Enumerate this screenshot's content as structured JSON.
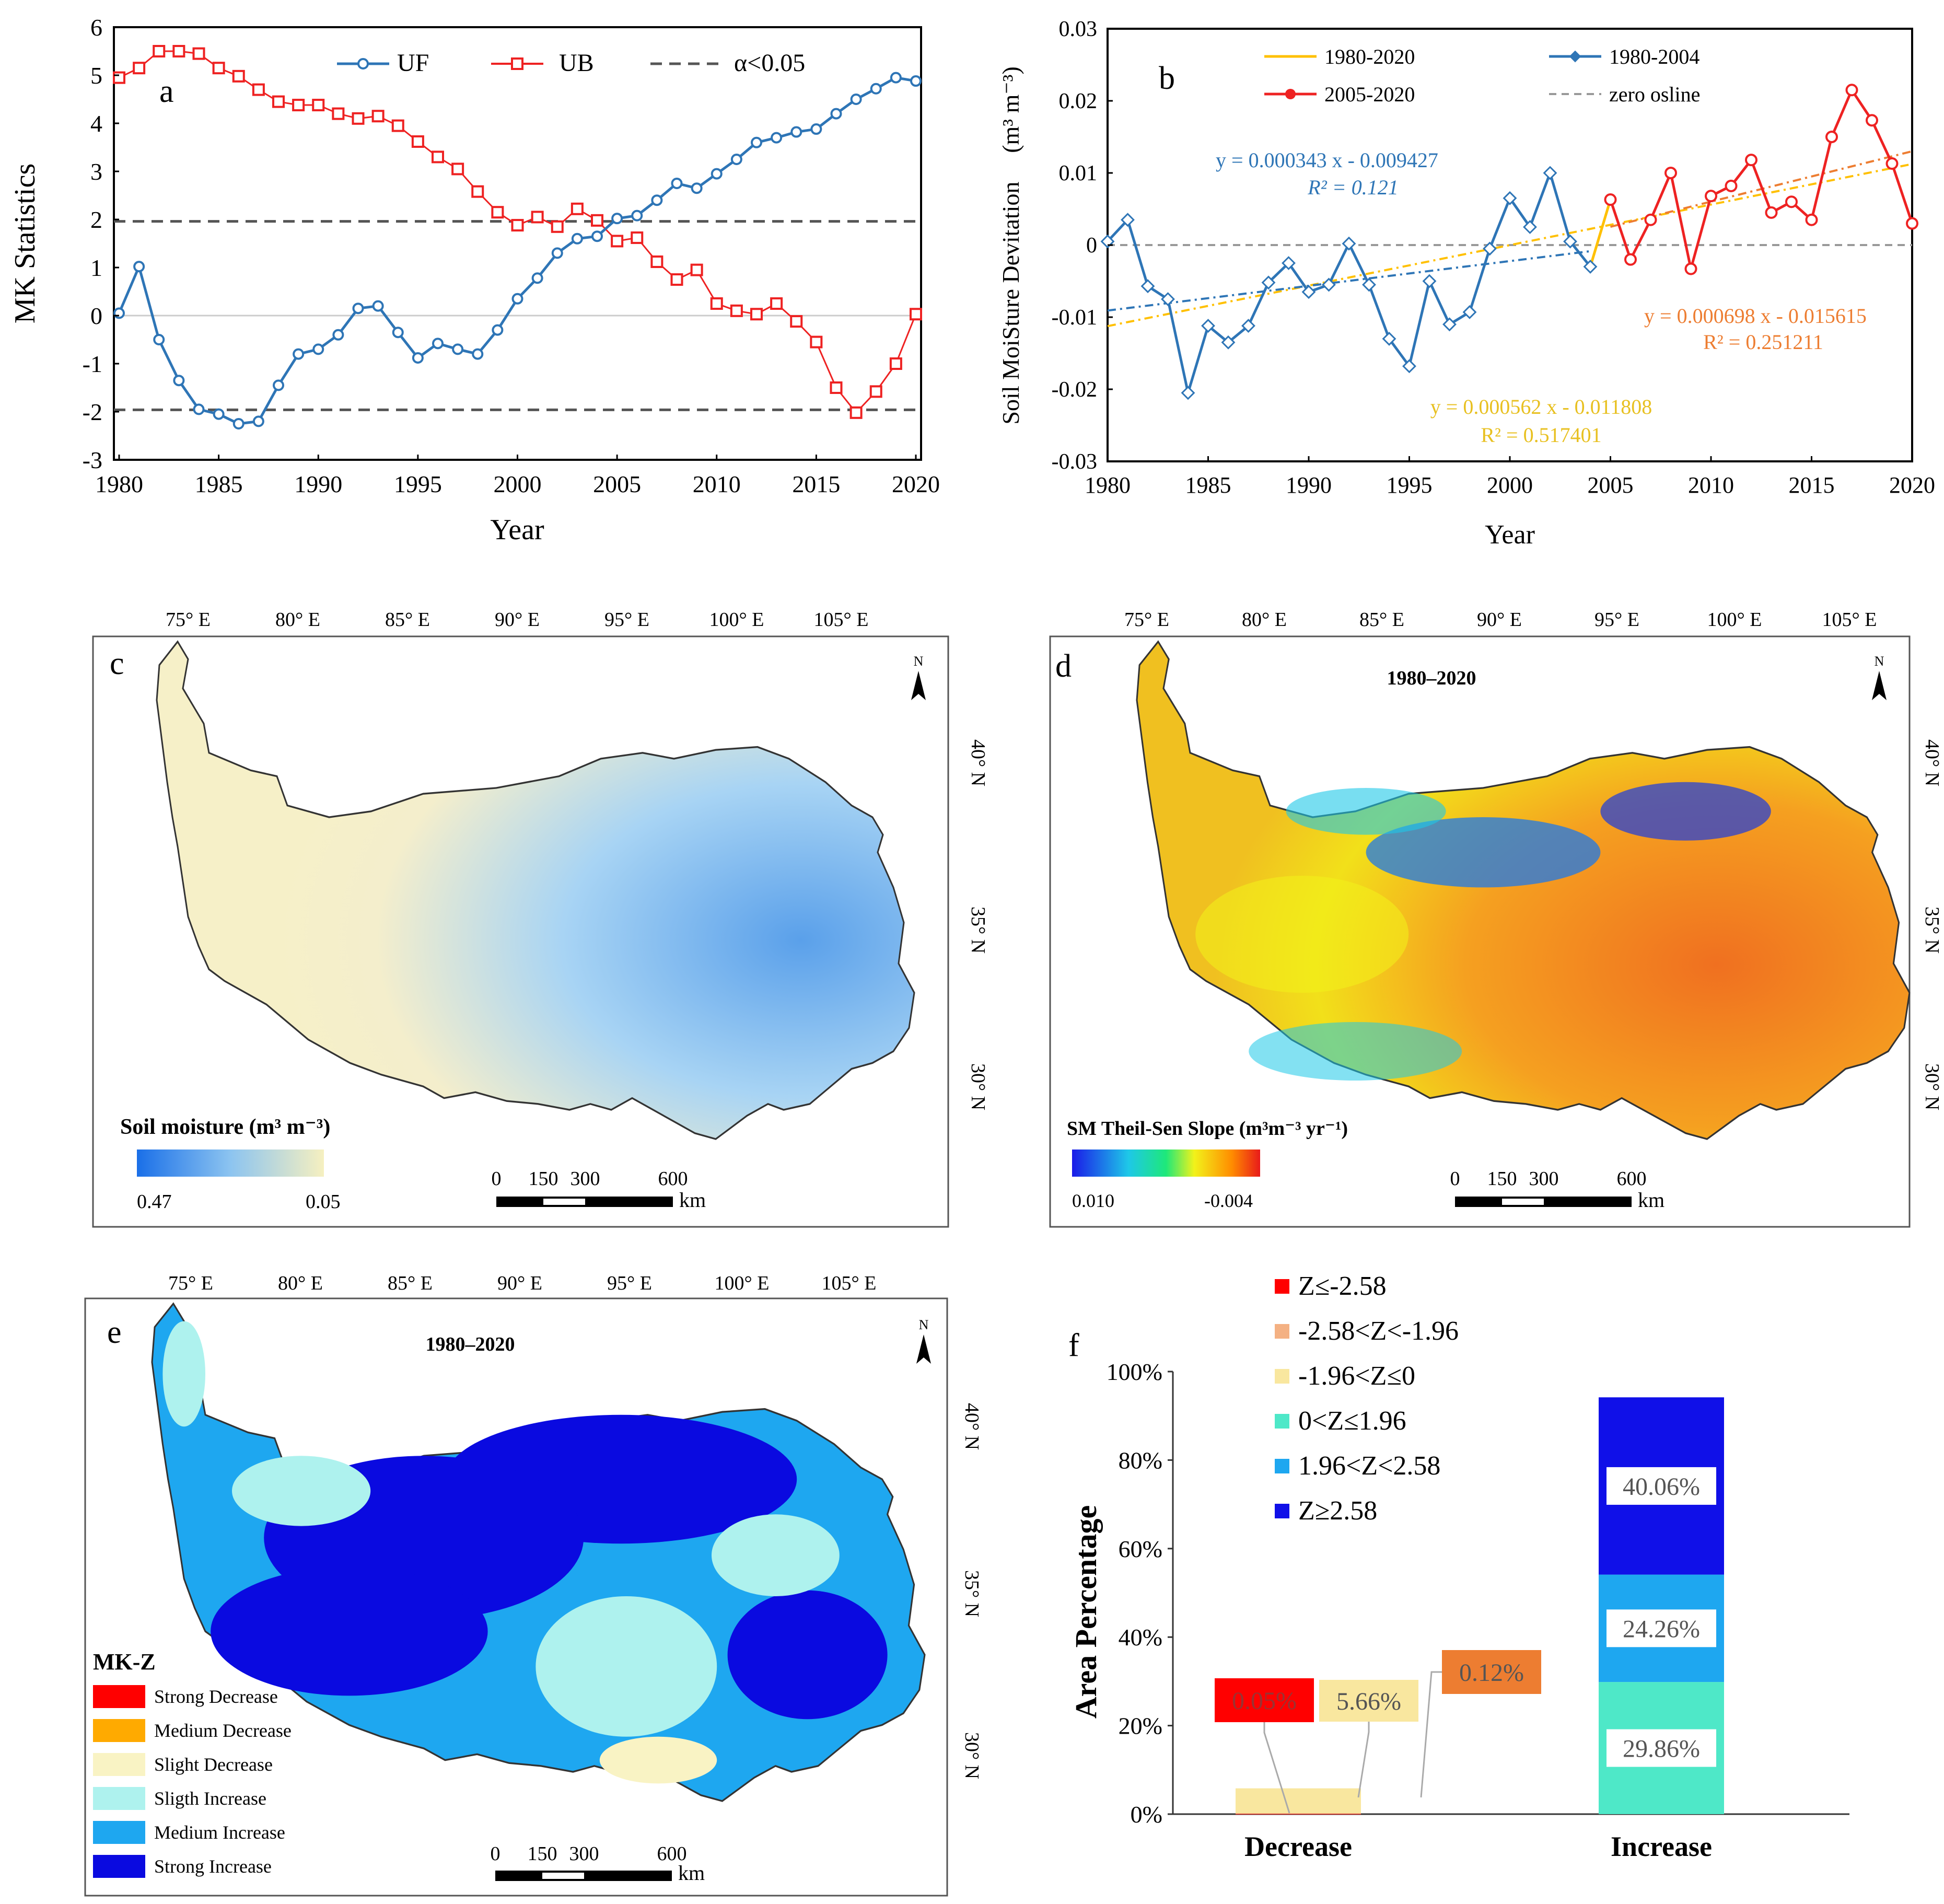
{
  "chart_data": [
    {
      "panel": "a",
      "type": "line",
      "ylabel": "MK Statistics",
      "xlabel": "Year",
      "xlim": [
        1980,
        2020
      ],
      "ylim": [
        -3,
        6
      ],
      "xticks": [
        1980,
        1985,
        1990,
        1995,
        2000,
        2005,
        2010,
        2015,
        2020
      ],
      "yticks": [
        -3,
        -2,
        -1,
        0,
        1,
        2,
        3,
        4,
        5,
        6
      ],
      "legend": [
        "UF",
        "UB",
        "α<0.05"
      ],
      "colors": {
        "UF": "#2e75b6",
        "UB": "#ee2222",
        "ref": "#555555"
      },
      "x": [
        1980,
        1981,
        1982,
        1983,
        1984,
        1985,
        1986,
        1987,
        1988,
        1989,
        1990,
        1991,
        1992,
        1993,
        1994,
        1995,
        1996,
        1997,
        1998,
        1999,
        2000,
        2001,
        2002,
        2003,
        2004,
        2005,
        2006,
        2007,
        2008,
        2009,
        2010,
        2011,
        2012,
        2013,
        2014,
        2015,
        2016,
        2017,
        2018,
        2019,
        2020
      ],
      "series": [
        {
          "name": "UF",
          "values": [
            0.05,
            1.02,
            -0.5,
            -1.35,
            -1.95,
            -2.05,
            -2.25,
            -2.2,
            -1.45,
            -0.8,
            -0.7,
            -0.4,
            0.15,
            0.2,
            -0.35,
            -0.88,
            -0.58,
            -0.7,
            -0.8,
            -0.3,
            0.35,
            0.78,
            1.3,
            1.6,
            1.65,
            2.02,
            2.08,
            2.4,
            2.75,
            2.65,
            2.95,
            3.25,
            3.6,
            3.7,
            3.82,
            3.88,
            4.2,
            4.5,
            4.72,
            4.95,
            4.88
          ]
        },
        {
          "name": "UB",
          "values": [
            4.95,
            5.15,
            5.5,
            5.5,
            5.45,
            5.15,
            4.98,
            4.7,
            4.45,
            4.38,
            4.38,
            4.2,
            4.1,
            4.15,
            3.95,
            3.62,
            3.3,
            3.05,
            2.58,
            2.15,
            1.88,
            2.05,
            1.85,
            2.22,
            1.98,
            1.55,
            1.62,
            1.12,
            0.75,
            0.95,
            0.25,
            0.1,
            0.03,
            0.25,
            -0.12,
            -0.55,
            -1.5,
            -2.02,
            -1.58,
            -1.0,
            0.03
          ]
        }
      ],
      "reference_lines": [
        1.96,
        -1.96
      ],
      "annotation": "a"
    },
    {
      "panel": "b",
      "type": "line",
      "ylabel": "Soil MoiSture Devitation",
      "ylabel_unit": "(m³ m⁻³)",
      "xlabel": "Year",
      "xlim": [
        1980,
        2020
      ],
      "ylim": [
        -0.03,
        0.03
      ],
      "xticks": [
        1980,
        1985,
        1990,
        1995,
        2000,
        2005,
        2010,
        2015,
        2020
      ],
      "yticks": [
        -0.03,
        -0.02,
        -0.01,
        0,
        0.01,
        0.02,
        0.03
      ],
      "ytick_labels": [
        "-0.03",
        "-0.02",
        "-0.01",
        "0",
        "0.01",
        "0.02",
        "0.03"
      ],
      "legend": [
        "1980-2020",
        "1980-2004",
        "2005-2020",
        "zero osline"
      ],
      "colors": {
        "all": "#ffc000",
        "early": "#2e75b6",
        "late": "#ee2222",
        "late_trend": "#ed7d31",
        "zero": "#999999"
      },
      "series": [
        {
          "name": "1980-2004",
          "x": [
            1980,
            1981,
            1982,
            1983,
            1984,
            1985,
            1986,
            1987,
            1988,
            1989,
            1990,
            1991,
            1992,
            1993,
            1994,
            1995,
            1996,
            1997,
            1998,
            1999,
            2000,
            2001,
            2002,
            2003,
            2004
          ],
          "values": [
            0.0005,
            0.0035,
            -0.0057,
            -0.0075,
            -0.0205,
            -0.0112,
            -0.0135,
            -0.0112,
            -0.0052,
            -0.0025,
            -0.0065,
            -0.0055,
            0.0002,
            -0.0055,
            -0.013,
            -0.0168,
            -0.005,
            -0.011,
            -0.0093,
            -0.0005,
            0.0065,
            0.0025,
            0.01,
            0.0005,
            -0.003
          ]
        },
        {
          "name": "2005-2020",
          "x": [
            2005,
            2006,
            2007,
            2008,
            2009,
            2010,
            2011,
            2012,
            2013,
            2014,
            2015,
            2016,
            2017,
            2018,
            2019,
            2020
          ],
          "values": [
            0.0063,
            -0.002,
            0.0035,
            0.01,
            -0.0033,
            0.0068,
            0.0082,
            0.0118,
            0.0045,
            0.006,
            0.0035,
            0.015,
            0.0215,
            0.0173,
            0.0113,
            0.003
          ]
        }
      ],
      "trendlines": [
        {
          "name": "1980-2020",
          "slope": 0.000562,
          "intercept": -0.011808,
          "equation": "y = 0.000562  x - 0.011808",
          "r2": "R² = 0.517401"
        },
        {
          "name": "1980-2004",
          "slope": 0.000343,
          "intercept": -0.009427,
          "equation": "y = 0.000343  x - 0.009427",
          "r2": "R² = 0.121"
        },
        {
          "name": "2005-2020",
          "slope": 0.000698,
          "intercept": -0.015615,
          "equation": "y = 0.000698  x - 0.015615",
          "r2": "R² = 0.251211"
        }
      ],
      "annotation": "b"
    },
    {
      "panel": "f",
      "type": "bar",
      "stacked": true,
      "ylabel": "Area Percentage",
      "categories": [
        "Decrease",
        "Increase"
      ],
      "ylim": [
        0,
        100
      ],
      "yticks": [
        0,
        20,
        40,
        60,
        80,
        100
      ],
      "ytick_labels": [
        "0%",
        "20%",
        "40%",
        "60%",
        "80%",
        "100%"
      ],
      "legend": [
        "Z≤-2.58",
        "-2.58<Z<-1.96",
        "-1.96<Z≤0",
        "0<Z≤1.96",
        "1.96<Z<2.58",
        "Z≥2.58"
      ],
      "series": [
        {
          "name": "Z≤-2.58",
          "color": "#ff0000",
          "values": [
            0.05,
            0
          ],
          "label": "0.05%"
        },
        {
          "name": "-2.58<Z<-1.96",
          "color": "#f4b183",
          "values": [
            0.12,
            0
          ],
          "label": "0.12%"
        },
        {
          "name": "-1.96<Z≤0",
          "color": "#f9e79f",
          "values": [
            5.66,
            0
          ],
          "label": "5.66%"
        },
        {
          "name": "0<Z≤1.96",
          "color": "#4ee8c8",
          "values": [
            0,
            29.86
          ],
          "label": "29.86%"
        },
        {
          "name": "1.96<Z<2.58",
          "color": "#1ea7f0",
          "values": [
            0,
            24.26
          ],
          "label": "24.26%"
        },
        {
          "name": "Z≥2.58",
          "color": "#1010e8",
          "values": [
            0,
            40.06
          ],
          "label": "40.06%"
        }
      ],
      "annotation": "f"
    }
  ],
  "maps": {
    "lon_labels": [
      "75° E",
      "80° E",
      "85° E",
      "90° E",
      "95° E",
      "100° E",
      "105° E"
    ],
    "lat_labels": [
      "40° N",
      "35° N",
      "30° N"
    ],
    "north": "N",
    "scale_labels": [
      "0",
      "150",
      "300",
      "600"
    ],
    "scale_unit": "km",
    "c": {
      "letter": "c",
      "legend_title": "Soil moisture (m³ m⁻³)",
      "legend_min": "0.47",
      "legend_max": "0.05",
      "colors": [
        "#1a6fe8",
        "#7cbcf0",
        "#f6f0c0"
      ]
    },
    "d": {
      "letter": "d",
      "title": "1980–2020",
      "legend_title": "SM Theil-Sen Slope (m³m⁻³ yr⁻¹)",
      "legend_min": "0.010",
      "legend_max": "-0.004",
      "colors": [
        "#1a1ae8",
        "#1ec8e8",
        "#f2f21a",
        "#ff8c00",
        "#e81a1a"
      ]
    },
    "e": {
      "letter": "e",
      "title": "1980–2020",
      "legend_title": "MK-Z",
      "classes": [
        {
          "label": "Strong Decrease",
          "color": "#ff0000"
        },
        {
          "label": "Medium Decrease",
          "color": "#ffaa00"
        },
        {
          "label": "Slight Decrease",
          "color": "#f9f3c4"
        },
        {
          "label": "Sligth Increase",
          "color": "#aef2ee"
        },
        {
          "label": "Medium Increase",
          "color": "#1ea7f0"
        },
        {
          "label": "Strong Increase",
          "color": "#0a0ae0"
        }
      ]
    }
  }
}
